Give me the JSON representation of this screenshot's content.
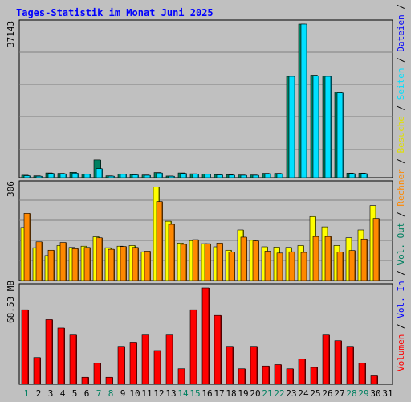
{
  "chart_data": {
    "type": "bar",
    "title": "Tages-Statistik im Monat Juni 2025",
    "categories": [
      "1",
      "2",
      "3",
      "4",
      "5",
      "6",
      "7",
      "8",
      "9",
      "10",
      "11",
      "12",
      "13",
      "14",
      "15",
      "16",
      "17",
      "18",
      "19",
      "20",
      "21",
      "22",
      "23",
      "24",
      "25",
      "26",
      "27",
      "28",
      "29",
      "30",
      "31"
    ],
    "weekend_days": [
      "1",
      "7",
      "8",
      "14",
      "15",
      "21",
      "22",
      "28",
      "29"
    ],
    "panels": [
      {
        "id": "top",
        "max_label": "37143",
        "ylim": [
          0,
          37143
        ],
        "series": [
          {
            "name": "Anfragen",
            "color": "#008060",
            "values": [
              600,
              450,
              1150,
              1050,
              1300,
              900,
              4300,
              450,
              900,
              750,
              650,
              1250,
              400,
              1150,
              950,
              900,
              750,
              700,
              650,
              650,
              1050,
              1050,
              24500,
              37143,
              24800,
              24600,
              20700,
              1100,
              1100,
              0,
              0
            ]
          },
          {
            "name": "Dateien",
            "color": "#0000ff",
            "values": [
              0,
              0,
              0,
              0,
              0,
              0,
              0,
              0,
              0,
              0,
              0,
              0,
              0,
              0,
              0,
              0,
              0,
              0,
              0,
              0,
              0,
              0,
              0,
              0,
              0,
              0,
              0,
              0,
              0,
              0,
              0
            ]
          },
          {
            "name": "Seiten",
            "color": "#00e0ff",
            "values": [
              480,
              360,
              1050,
              950,
              1100,
              820,
              2200,
              380,
              820,
              680,
              580,
              1150,
              360,
              1050,
              850,
              820,
              680,
              630,
              590,
              590,
              950,
              950,
              24500,
              37143,
              24600,
              24500,
              20500,
              1000,
              1000,
              0,
              0
            ]
          }
        ]
      },
      {
        "id": "middle",
        "max_label": "306",
        "ylim": [
          0,
          306
        ],
        "series": [
          {
            "name": "Besuche",
            "color": "#ffff00",
            "values": [
              170,
              105,
              80,
              112,
              106,
              110,
              140,
              105,
              110,
              112,
              92,
              300,
              190,
              120,
              128,
              118,
              108,
              97,
              162,
              129,
              108,
              107,
              106,
              112,
              205,
              172,
              112,
              137,
              162,
              240,
              0
            ]
          },
          {
            "name": "Rechner",
            "color": "#ff8800",
            "values": [
              215,
              124,
              97,
              122,
              102,
              106,
              137,
              100,
              109,
              106,
              94,
              253,
              180,
              116,
              131,
              118,
              120,
              91,
              139,
              127,
              94,
              88,
              92,
              90,
              141,
              141,
              91,
              96,
              133,
              199,
              0
            ]
          }
        ]
      },
      {
        "id": "bottom",
        "max_label": "68.53 MB",
        "ylim": [
          0,
          68.53
        ],
        "series": [
          {
            "name": "Volumen",
            "color": "#ff0000",
            "values": [
              53,
              19,
              46,
              40,
              35,
              5,
              15,
              5,
              27,
              30,
              35,
              24,
              35,
              11,
              53,
              68.53,
              49,
              27,
              11,
              27,
              13,
              14,
              11,
              18,
              12,
              35,
              31,
              27,
              15,
              6,
              0
            ]
          },
          {
            "name": "Vol. In",
            "color": "#0000ff",
            "values": []
          },
          {
            "name": "Vol. Out",
            "color": "#008060",
            "values": []
          }
        ]
      }
    ],
    "right_legend": [
      {
        "text": "Volumen",
        "color": "#ff0000"
      },
      {
        "text": " / ",
        "color": "#000000"
      },
      {
        "text": "Vol. In",
        "color": "#0000ff"
      },
      {
        "text": " / ",
        "color": "#000000"
      },
      {
        "text": "Vol. Out",
        "color": "#008060"
      },
      {
        "text": " / ",
        "color": "#000000"
      },
      {
        "text": "Rechner",
        "color": "#ff8800"
      },
      {
        "text": " / ",
        "color": "#000000"
      },
      {
        "text": "Besuche",
        "color": "#e0e000"
      },
      {
        "text": " / ",
        "color": "#000000"
      },
      {
        "text": "Seiten",
        "color": "#00e0ff"
      },
      {
        "text": " / ",
        "color": "#000000"
      },
      {
        "text": "Dateien",
        "color": "#0000ff"
      },
      {
        "text": " / ",
        "color": "#000000"
      },
      {
        "text": "Anfragen",
        "color": "#008060"
      }
    ],
    "colors": {
      "background": "#c0c0c0",
      "title": "#0000ff",
      "weekday_label": "#000000",
      "weekend_label": "#008060",
      "gridline": "#808080"
    }
  }
}
